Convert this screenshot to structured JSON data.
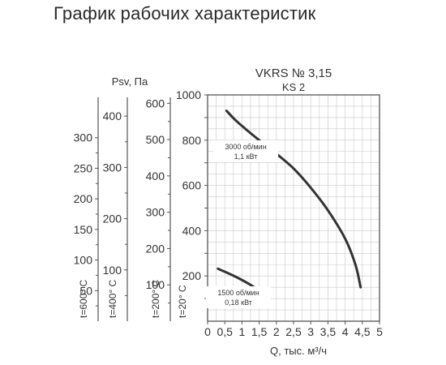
{
  "page_title": "График рабочих характеристик",
  "chart_data": {
    "type": "line",
    "model": "VKRS № 3,15",
    "variant": "KS 2",
    "xlabel": "Q, тыс. м³/ч",
    "ylabel": "Psv, Па",
    "xlim": [
      0,
      5
    ],
    "ylim": [
      0,
      1000
    ],
    "x_ticks": [
      "0",
      "0,5",
      "1",
      "1,5",
      "2",
      "2,5",
      "3",
      "3,5",
      "4",
      "4,5",
      "5"
    ],
    "y_ticks": [
      "200",
      "400",
      "600",
      "800",
      "1000"
    ],
    "grid": true,
    "series": [
      {
        "name": "3000 об/мин 1,1 кВт",
        "label_lines": [
          "3000 об/мин",
          "1,1 кВт"
        ],
        "x": [
          0.55,
          0.8,
          1.1,
          1.5,
          2.0,
          2.5,
          3.0,
          3.5,
          4.0,
          4.3,
          4.45
        ],
        "y": [
          930,
          890,
          850,
          800,
          740,
          675,
          590,
          490,
          365,
          250,
          150
        ]
      },
      {
        "name": "1500 об/мин 0,18 кВт",
        "label_lines": [
          "1500 об/мин",
          "0,18 кВт"
        ],
        "x": [
          0.3,
          0.6,
          0.9,
          1.2,
          1.5,
          1.8
        ],
        "y": [
          232,
          212,
          190,
          165,
          135,
          105
        ]
      }
    ],
    "temperature_scales": [
      {
        "label": "t=600° C",
        "ticks": [
          "50",
          "100",
          "150",
          "200",
          "250",
          "300"
        ],
        "values": [
          50,
          100,
          150,
          200,
          250,
          300
        ],
        "ratio": 0.3699
      },
      {
        "label": "t=400° C",
        "ticks": [
          "100",
          "200",
          "300",
          "400"
        ],
        "values": [
          100,
          200,
          300,
          400
        ],
        "ratio": 0.4414
      },
      {
        "label": "t=200° C",
        "ticks": [
          "100",
          "200",
          "300",
          "400",
          "500",
          "600"
        ],
        "values": [
          100,
          200,
          300,
          400,
          500,
          600
        ],
        "ratio": 0.6231
      },
      {
        "label": "t=20° C",
        "ticks": [],
        "values": [],
        "ratio": 1.0
      }
    ]
  }
}
